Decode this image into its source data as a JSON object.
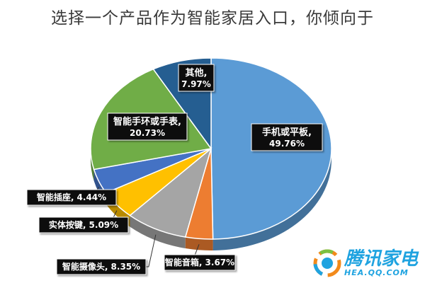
{
  "chart_data": {
    "type": "pie",
    "title": "选择一个产品作为智能家居入口，你倾向于",
    "slices": [
      {
        "name": "手机或平板",
        "value": 49.76,
        "label_name": "手机或平板,",
        "label_value": "49.76%",
        "color": "#5b9bd5"
      },
      {
        "name": "智能音箱",
        "value": 3.67,
        "label_name": "智能音箱,",
        "label_value": "3.67%",
        "color": "#ed7d31"
      },
      {
        "name": "智能摄像头",
        "value": 8.35,
        "label_name": "智能摄像头,",
        "label_value": "8.35%",
        "color": "#a5a5a5"
      },
      {
        "name": "实体按键",
        "value": 5.09,
        "label_name": "实体按键,",
        "label_value": "5.09%",
        "color": "#ffc000"
      },
      {
        "name": "智能插座",
        "value": 4.44,
        "label_name": "智能插座,",
        "label_value": "4.44%",
        "color": "#4472c4"
      },
      {
        "name": "智能手环或手表",
        "value": 20.73,
        "label_name": "智能手环或手表,",
        "label_value": "20.73%",
        "color": "#70ad47"
      },
      {
        "name": "其他",
        "value": 7.97,
        "label_name": "其他,",
        "label_value": "7.97%",
        "color": "#255e91"
      }
    ],
    "legend": "none",
    "style": "3d-pie"
  },
  "watermark": {
    "brand": "腾讯家电",
    "url": "HEA.QQ.COM",
    "logo_icon": "tencent-home-appliance-logo"
  }
}
